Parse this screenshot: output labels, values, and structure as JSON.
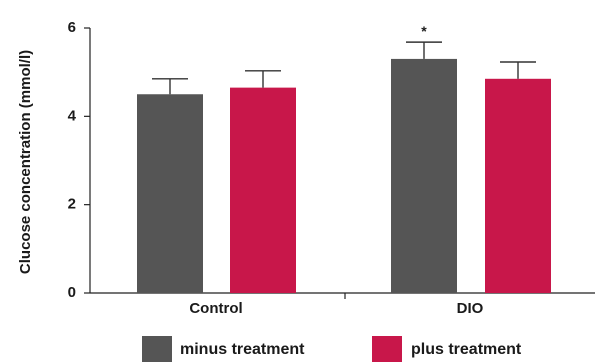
{
  "chart_data": {
    "type": "bar",
    "title": "",
    "xlabel": "",
    "ylabel": "Clucose concentration (mmol/l)",
    "ylim": [
      0,
      6
    ],
    "yticks": [
      "0",
      "2",
      "4",
      "6"
    ],
    "categories": [
      "Control",
      "DIO"
    ],
    "series": [
      {
        "name": "minus treatment",
        "color": "#555555",
        "values": [
          4.5,
          5.3
        ],
        "errors": [
          0.35,
          0.38
        ]
      },
      {
        "name": "plus treatment",
        "color": "#c8174a",
        "values": [
          4.65,
          4.85
        ],
        "errors": [
          0.38,
          0.38
        ]
      }
    ],
    "annotations": [
      {
        "category": "DIO",
        "series": 0,
        "text": "*"
      }
    ],
    "grid": false,
    "legend": "bottom"
  }
}
